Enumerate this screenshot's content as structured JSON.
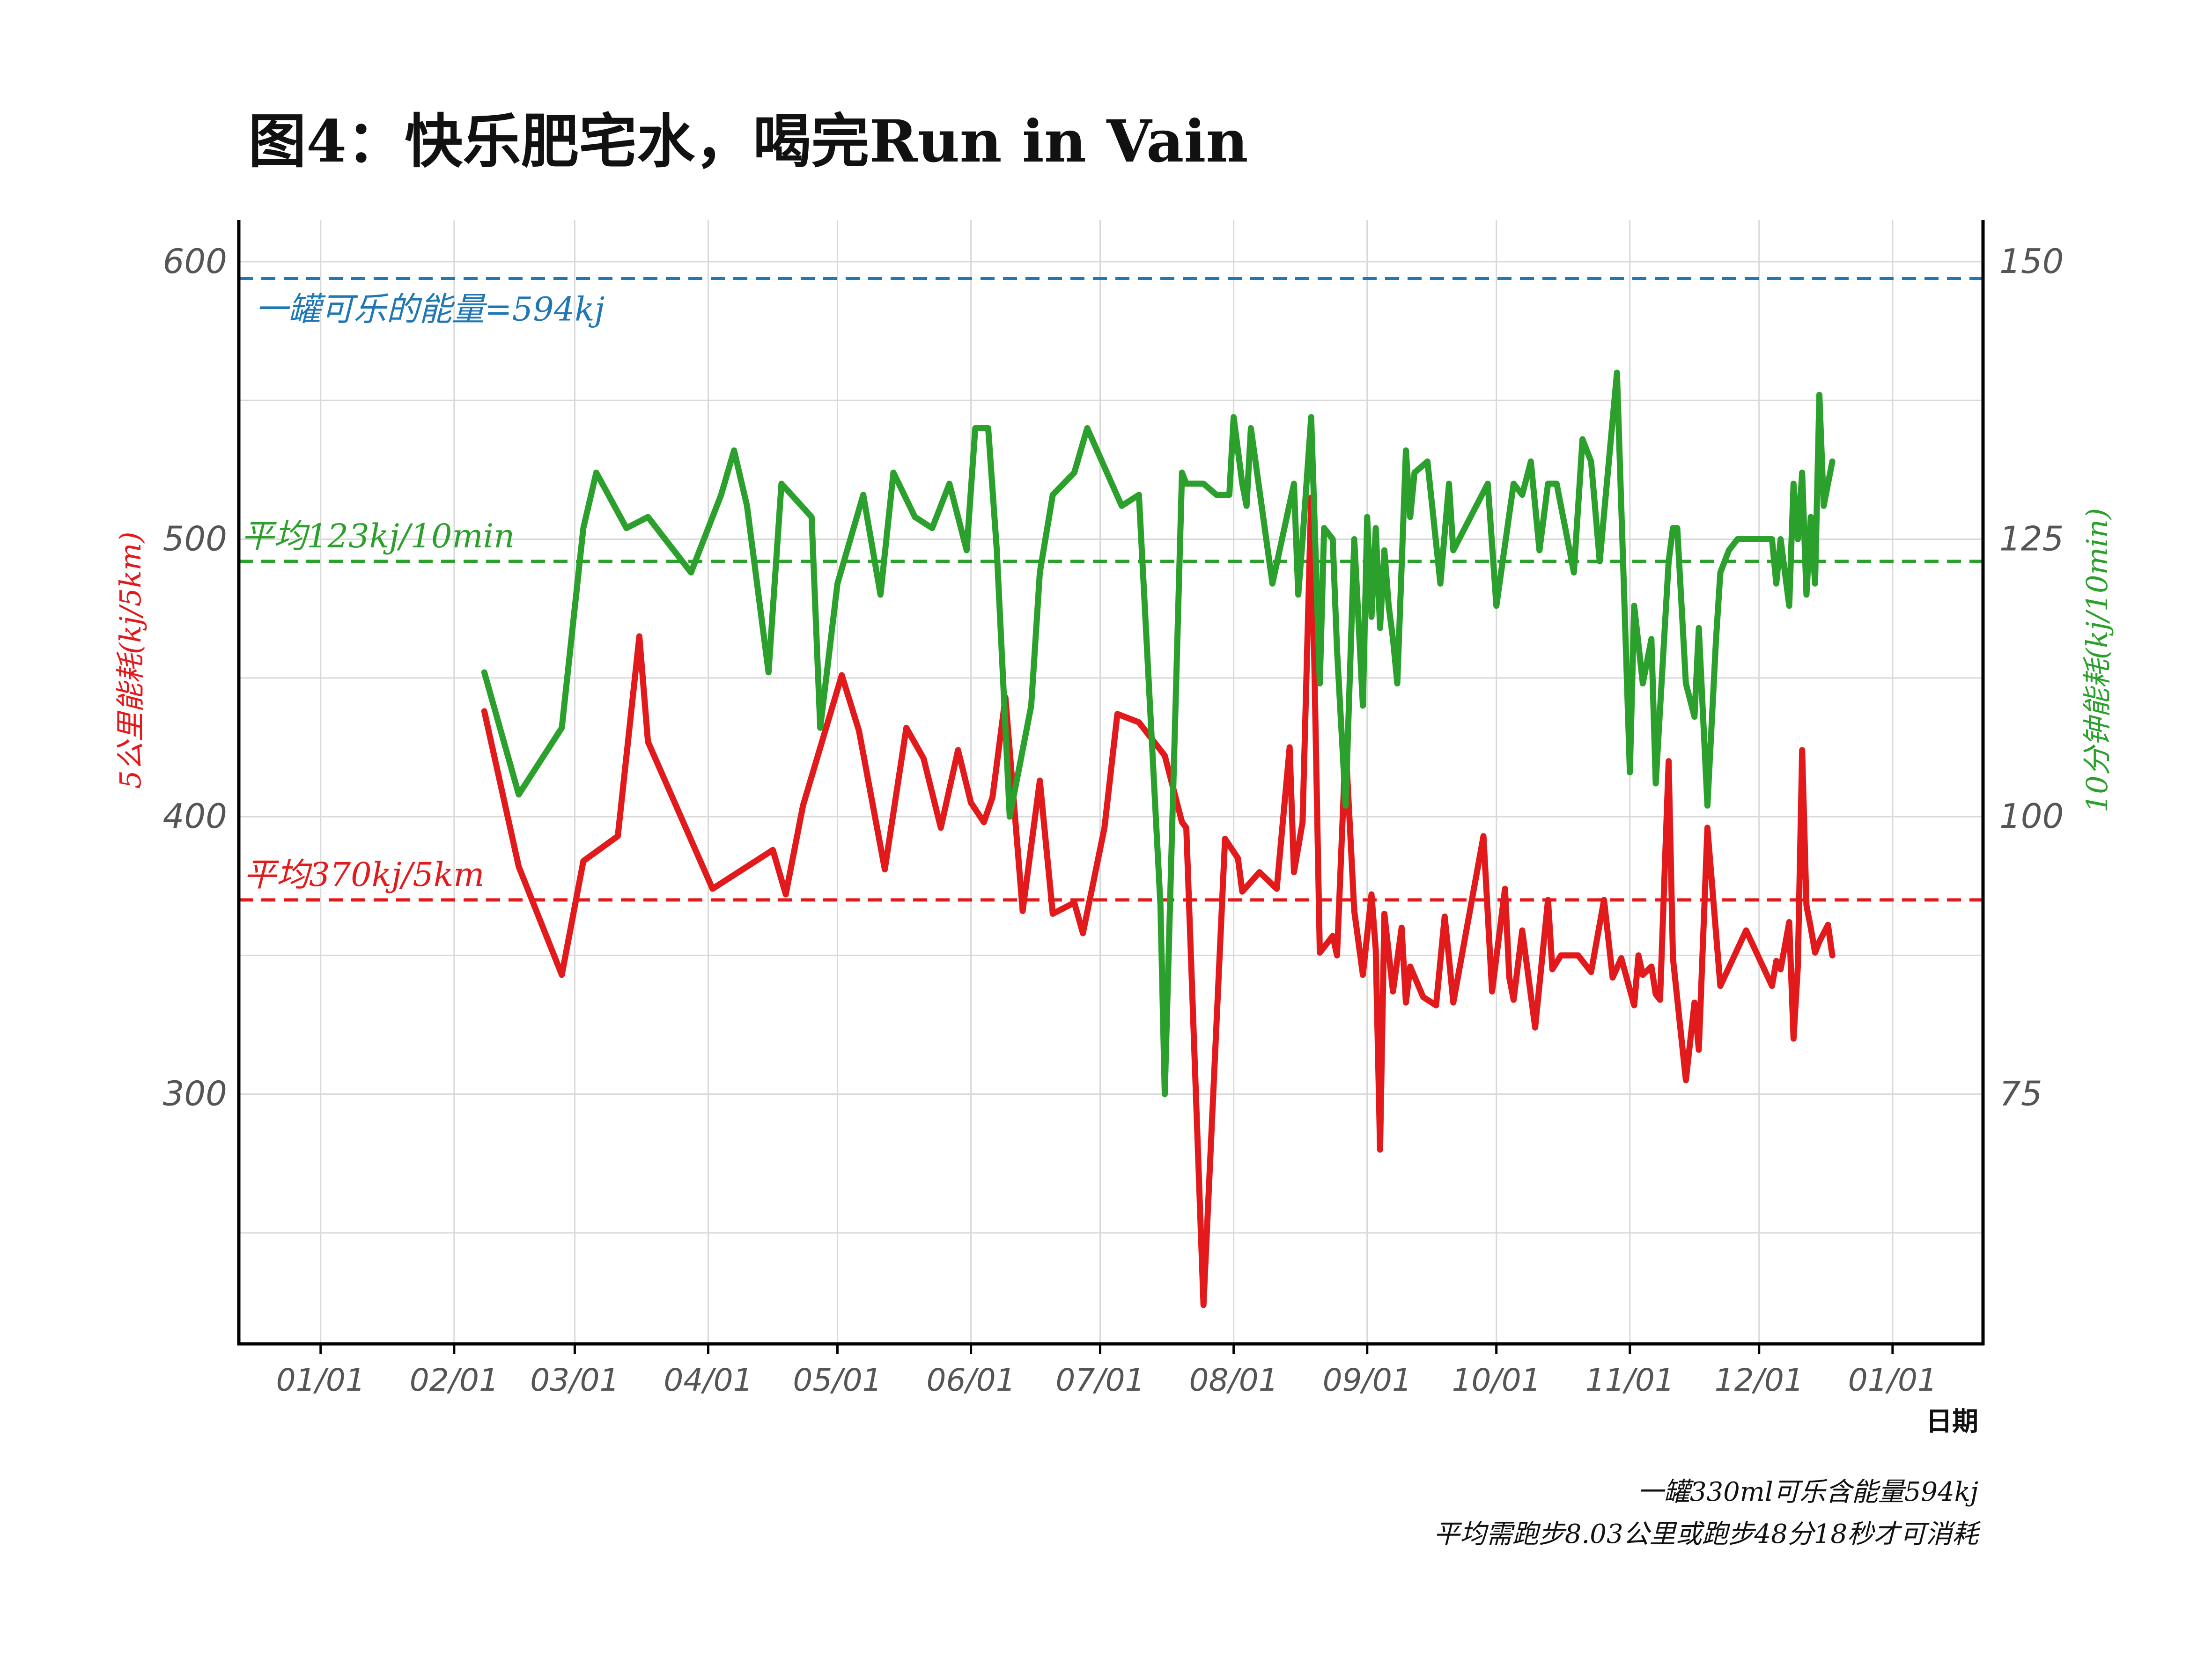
{
  "chart_data": {
    "type": "line",
    "title": "图4：快乐肥宅水，喝完Run in Vain",
    "xlabel": "日期",
    "ylabel_left": "5公里能耗(kj/5km)",
    "ylabel_right": "10分钟能耗(kj/10min)",
    "x_ticks": [
      "01/01",
      "02/01",
      "03/01",
      "04/01",
      "05/01",
      "06/01",
      "07/01",
      "08/01",
      "09/01",
      "10/01",
      "11/01",
      "12/01",
      "01/01"
    ],
    "x_tick_days": [
      0,
      31,
      59,
      90,
      120,
      151,
      181,
      212,
      243,
      273,
      304,
      334,
      365
    ],
    "xlim_days": [
      -19,
      386
    ],
    "ylim_left": [
      210,
      615
    ],
    "ylim_right": [
      52.5,
      153.75
    ],
    "yticks_left": [
      300,
      400,
      500,
      600
    ],
    "yticks_right": [
      75,
      100,
      125,
      150
    ],
    "grid": true,
    "reference_lines": [
      {
        "label": "一罐可乐的能量=594kj",
        "axis": "left",
        "value": 594,
        "color": "#1f77b4"
      },
      {
        "label": "平均123kj/10min",
        "axis": "right",
        "value": 123,
        "color": "#2ca02c"
      },
      {
        "label": "平均370kj/5km",
        "axis": "left",
        "value": 370,
        "color": "#e31a1c"
      }
    ],
    "series": [
      {
        "name": "5公里能耗(kj/5km)",
        "axis": "left",
        "color": "#e31a1c",
        "x": [
          38,
          46,
          56,
          61,
          69,
          74,
          76,
          91,
          105,
          108,
          112,
          121,
          125,
          131,
          136,
          140,
          144,
          148,
          151,
          154,
          156,
          159,
          163,
          167,
          170,
          175,
          177,
          182,
          185,
          190,
          196,
          200,
          201,
          205,
          210,
          213,
          214,
          218,
          222,
          225,
          226,
          228,
          230,
          232,
          235,
          236,
          238,
          240,
          242,
          244,
          245,
          246,
          247,
          249,
          251,
          252,
          253,
          256,
          259,
          261,
          262,
          263,
          270,
          272,
          275,
          276,
          277,
          279,
          282,
          285,
          286,
          288,
          292,
          295,
          298,
          300,
          302,
          305,
          306,
          307,
          309,
          310,
          311,
          313,
          314,
          317,
          319,
          320,
          322,
          325,
          331,
          337,
          338,
          339,
          341,
          342,
          343,
          344,
          345,
          346,
          347,
          348,
          350,
          351
        ],
        "values": [
          438,
          382,
          343,
          384,
          393,
          465,
          427,
          374,
          388,
          372,
          404,
          451,
          431,
          381,
          432,
          421,
          396,
          424,
          405,
          398,
          407,
          443,
          366,
          413,
          365,
          369,
          358,
          396,
          437,
          434,
          422,
          398,
          396,
          224,
          392,
          385,
          373,
          380,
          374,
          425,
          380,
          398,
          515,
          351,
          357,
          350,
          426,
          366,
          343,
          372,
          352,
          280,
          365,
          337,
          360,
          333,
          346,
          335,
          332,
          364,
          349,
          333,
          393,
          337,
          374,
          342,
          334,
          359,
          324,
          370,
          345,
          350,
          350,
          344,
          370,
          342,
          349,
          332,
          350,
          343,
          346,
          336,
          334,
          420,
          349,
          305,
          333,
          316,
          396,
          339,
          359,
          339,
          348,
          345,
          362,
          320,
          346,
          424,
          368,
          360,
          351,
          355,
          361,
          350
        ]
      },
      {
        "name": "10分钟能耗(kj/10min)",
        "axis": "right",
        "color": "#2ca02c",
        "x": [
          38,
          46,
          56,
          61,
          64,
          71,
          76,
          86,
          93,
          96,
          99,
          104,
          107,
          114,
          116,
          120,
          126,
          130,
          133,
          138,
          142,
          146,
          150,
          152,
          155,
          157,
          160,
          165,
          167,
          170,
          175,
          178,
          186,
          190,
          195,
          196,
          200,
          201,
          205,
          208,
          211,
          212,
          214,
          215,
          216,
          221,
          226,
          227,
          228,
          230,
          232,
          233,
          235,
          236,
          238,
          240,
          242,
          243,
          244,
          245,
          246,
          247,
          248,
          249,
          250,
          252,
          253,
          254,
          257,
          260,
          262,
          263,
          271,
          273,
          277,
          279,
          281,
          283,
          285,
          287,
          289,
          291,
          293,
          295,
          297,
          301,
          304,
          305,
          307,
          309,
          310,
          313,
          314,
          315,
          317,
          319,
          320,
          322,
          324,
          325,
          327,
          329,
          337,
          338,
          339,
          341,
          342,
          343,
          344,
          345,
          346,
          347,
          348,
          349,
          350,
          351
        ],
        "values": [
          113,
          102,
          108,
          126,
          131,
          126,
          127,
          122,
          129,
          133,
          128,
          113,
          130,
          127,
          108,
          121,
          129,
          120,
          131,
          127,
          126,
          130,
          124,
          135,
          135,
          124,
          100,
          110,
          122,
          129,
          131,
          135,
          128,
          129,
          92,
          75,
          131,
          130,
          130,
          129,
          129,
          136,
          130,
          128,
          135,
          121,
          130,
          120,
          125,
          136,
          112,
          126,
          125,
          115,
          101,
          125,
          110,
          127,
          118,
          126,
          117,
          124,
          119,
          116,
          112,
          133,
          127,
          131,
          132,
          121,
          130,
          124,
          130,
          119,
          130,
          129,
          132,
          124,
          130,
          130,
          126,
          122,
          134,
          132,
          123,
          140,
          104,
          119,
          112,
          116,
          103,
          123,
          126,
          126,
          112,
          109,
          117,
          101,
          116,
          122,
          124,
          125,
          125,
          121,
          125,
          119,
          130,
          125,
          131,
          120,
          127,
          121,
          138,
          128,
          130,
          132
        ]
      }
    ],
    "annotations": [
      "一罐330ml可乐含能量594kj",
      "平均需跑步8.03公里或跑步48分18秒才可消耗"
    ],
    "colors": {
      "axis": "#000000",
      "grid": "#d9d9d9",
      "tick_text": "#555555"
    }
  }
}
